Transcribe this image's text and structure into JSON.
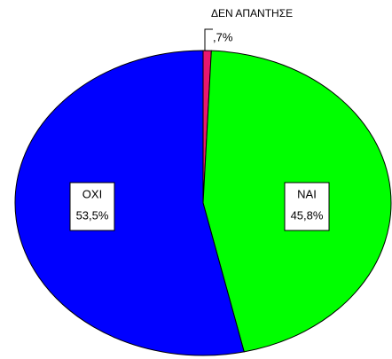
{
  "chart_data": {
    "type": "pie",
    "categories": [
      "ΔΕΝ ΑΠΑΝΤΗΣΕ",
      "ΝΑΙ",
      "ΟΧΙ"
    ],
    "values": [
      0.7,
      45.8,
      53.5
    ],
    "value_labels": [
      ",7%",
      "45,8%",
      "53,5%"
    ],
    "colors": [
      "#e8176f",
      "#00ff00",
      "#0000ff"
    ]
  }
}
